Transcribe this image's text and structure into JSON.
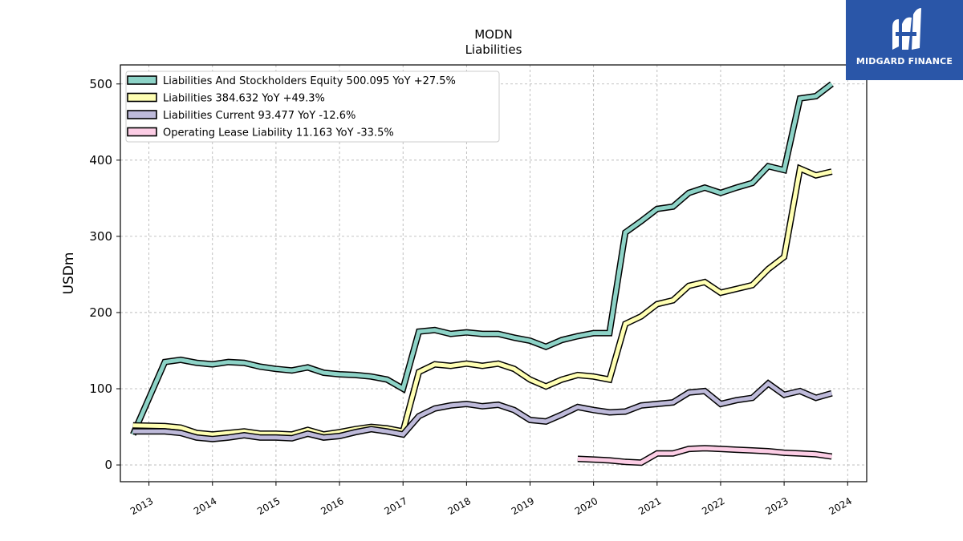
{
  "chart_data": {
    "type": "line",
    "title": "MODN",
    "subtitle": "Liabilities",
    "ylabel": "USDm",
    "xlabel": "",
    "xlim": [
      2012.55,
      2024.3
    ],
    "ylim": [
      -22,
      525
    ],
    "x_ticks": [
      2013,
      2014,
      2015,
      2016,
      2017,
      2018,
      2019,
      2020,
      2021,
      2022,
      2023,
      2024
    ],
    "y_ticks": [
      0,
      100,
      200,
      300,
      400,
      500
    ],
    "grid": true,
    "legend_position": "top-left",
    "series": [
      {
        "name": "Liabilities And Stockholders Equity  500.095 YoY +27.5%",
        "color": "#8dd3c7",
        "x": [
          2012.75,
          2013.25,
          2013.5,
          2013.75,
          2014.0,
          2014.25,
          2014.5,
          2014.75,
          2015.0,
          2015.25,
          2015.5,
          2015.75,
          2016.0,
          2016.25,
          2016.5,
          2016.75,
          2017.0,
          2017.25,
          2017.5,
          2017.75,
          2018.0,
          2018.25,
          2018.5,
          2018.75,
          2019.0,
          2019.25,
          2019.5,
          2019.75,
          2020.0,
          2020.25,
          2020.5,
          2020.75,
          2021.0,
          2021.25,
          2021.5,
          2021.75,
          2022.0,
          2022.25,
          2022.5,
          2022.75,
          2023.0,
          2023.25,
          2023.5,
          2023.75
        ],
        "y": [
          40,
          135,
          138,
          134,
          132,
          135,
          134,
          129,
          126,
          124,
          128,
          121,
          119,
          118,
          116,
          112,
          100,
          175,
          177,
          172,
          174,
          172,
          172,
          167,
          163,
          155,
          164,
          169,
          173,
          173,
          305,
          320,
          336,
          339,
          357,
          364,
          357,
          364,
          370,
          392,
          387,
          481,
          484,
          500
        ]
      },
      {
        "name": "Liabilities  384.632 YoY +49.3%",
        "color": "#ffffb3",
        "x": [
          2012.75,
          2013.25,
          2013.5,
          2013.75,
          2014.0,
          2014.25,
          2014.5,
          2014.75,
          2015.0,
          2015.25,
          2015.5,
          2015.75,
          2016.0,
          2016.25,
          2016.5,
          2016.75,
          2017.0,
          2017.25,
          2017.5,
          2017.75,
          2018.0,
          2018.25,
          2018.5,
          2018.75,
          2019.0,
          2019.25,
          2019.5,
          2019.75,
          2020.0,
          2020.25,
          2020.5,
          2020.75,
          2021.0,
          2021.25,
          2021.5,
          2021.75,
          2022.0,
          2022.25,
          2022.5,
          2022.75,
          2023.0,
          2023.25,
          2023.5,
          2023.75
        ],
        "y": [
          52,
          51,
          49,
          42,
          40,
          42,
          44,
          41,
          41,
          40,
          46,
          40,
          43,
          47,
          50,
          48,
          44,
          122,
          132,
          130,
          133,
          130,
          133,
          126,
          112,
          103,
          112,
          118,
          116,
          112,
          185,
          195,
          211,
          216,
          235,
          240,
          226,
          231,
          236,
          257,
          273,
          389,
          380,
          385
        ]
      },
      {
        "name": "Liabilities Current  93.477 YoY -12.6%",
        "color": "#bebada",
        "x": [
          2012.75,
          2013.25,
          2013.5,
          2013.75,
          2014.0,
          2014.25,
          2014.5,
          2014.75,
          2015.0,
          2015.25,
          2015.5,
          2015.75,
          2016.0,
          2016.25,
          2016.5,
          2016.75,
          2017.0,
          2017.25,
          2017.5,
          2017.75,
          2018.0,
          2018.25,
          2018.5,
          2018.75,
          2019.0,
          2019.25,
          2019.5,
          2019.75,
          2020.0,
          2020.25,
          2020.5,
          2020.75,
          2021.0,
          2021.25,
          2021.5,
          2021.75,
          2022.0,
          2022.25,
          2022.5,
          2022.75,
          2023.0,
          2023.25,
          2023.5,
          2023.75
        ],
        "y": [
          44,
          44,
          42,
          36,
          34,
          36,
          39,
          36,
          36,
          35,
          41,
          36,
          38,
          43,
          47,
          44,
          40,
          64,
          74,
          78,
          80,
          77,
          79,
          72,
          59,
          57,
          66,
          76,
          72,
          69,
          70,
          78,
          80,
          82,
          95,
          97,
          80,
          85,
          88,
          107,
          92,
          97,
          88,
          94
        ]
      },
      {
        "name": "Operating Lease Liability  11.163 YoY -33.5%",
        "color": "#fccde5",
        "x": [
          2019.75,
          2020.0,
          2020.25,
          2020.5,
          2020.75,
          2021.0,
          2021.25,
          2021.5,
          2021.75,
          2022.0,
          2022.25,
          2022.5,
          2022.75,
          2023.0,
          2023.25,
          2023.5,
          2023.75
        ],
        "y": [
          8,
          7,
          6,
          4,
          3,
          15,
          15,
          21,
          22,
          21,
          20,
          19,
          18,
          16,
          15,
          14,
          11
        ]
      }
    ]
  },
  "logo": {
    "text": "MIDGARD FINANCE"
  }
}
